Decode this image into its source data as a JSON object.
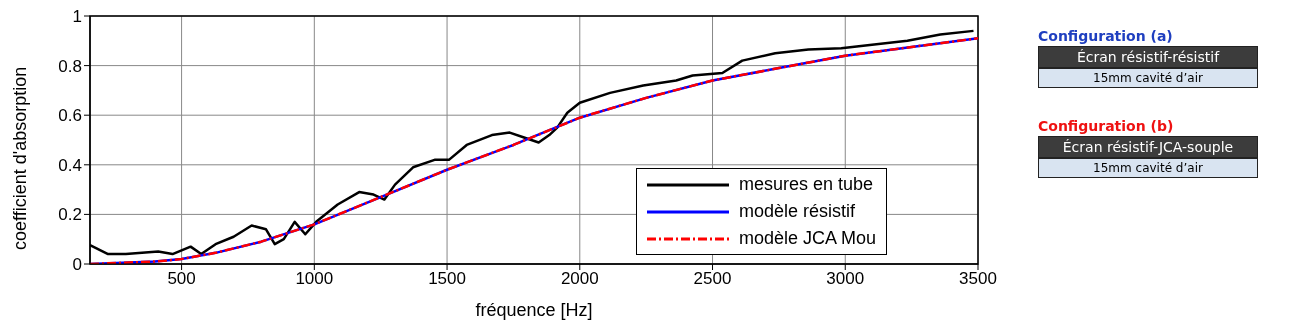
{
  "chart_data": {
    "type": "line",
    "xlabel": "fréquence [Hz]",
    "ylabel": "coefficient d'absorption",
    "xlim": [
      155,
      3500
    ],
    "ylim": [
      0,
      1
    ],
    "xticks": [
      500,
      1000,
      1500,
      2000,
      2500,
      3000,
      3500
    ],
    "yticks": [
      0,
      0.2,
      0.4,
      0.6,
      0.8,
      1
    ],
    "grid": true,
    "legend": "bottom right",
    "marker": "none",
    "series": [
      {
        "name": "mesures en tube",
        "color": "#000000",
        "line_style": "solid",
        "x": [
          155,
          223,
          290,
          412,
          466,
          534,
          574,
          628,
          696,
          764,
          818,
          851,
          885,
          926,
          966,
          1007,
          1088,
          1169,
          1223,
          1264,
          1304,
          1372,
          1453,
          1507,
          1574,
          1669,
          1736,
          1790,
          1845,
          1885,
          1915,
          1953,
          2000,
          2114,
          2239,
          2363,
          2425,
          2537,
          2612,
          2736,
          2861,
          2985,
          3109,
          3234,
          3358,
          3483
        ],
        "values": [
          0.076,
          0.04,
          0.04,
          0.05,
          0.04,
          0.07,
          0.04,
          0.08,
          0.11,
          0.155,
          0.14,
          0.08,
          0.1,
          0.17,
          0.12,
          0.17,
          0.24,
          0.29,
          0.28,
          0.26,
          0.32,
          0.39,
          0.42,
          0.42,
          0.48,
          0.52,
          0.53,
          0.51,
          0.49,
          0.52,
          0.55,
          0.61,
          0.65,
          0.69,
          0.72,
          0.74,
          0.76,
          0.77,
          0.82,
          0.85,
          0.865,
          0.87,
          0.885,
          0.9,
          0.925,
          0.94
        ]
      },
      {
        "name": "modèle résistif",
        "color": "#0000ff",
        "line_style": "solid",
        "x": [
          155,
          400,
          500,
          628,
          800,
          1000,
          1250,
          1500,
          1750,
          2000,
          2250,
          2500,
          2750,
          3000,
          3250,
          3500
        ],
        "values": [
          0,
          0.01,
          0.02,
          0.045,
          0.09,
          0.16,
          0.27,
          0.38,
          0.48,
          0.59,
          0.67,
          0.74,
          0.79,
          0.84,
          0.875,
          0.91
        ]
      },
      {
        "name": "modèle JCA Mou",
        "color": "#ff0000",
        "line_style": "dashed",
        "x": [
          155,
          400,
          500,
          628,
          800,
          1000,
          1250,
          1500,
          1750,
          2000,
          2250,
          2500,
          2750,
          3000,
          3250,
          3500
        ],
        "values": [
          0,
          0.01,
          0.02,
          0.045,
          0.09,
          0.16,
          0.27,
          0.38,
          0.48,
          0.59,
          0.67,
          0.74,
          0.79,
          0.84,
          0.875,
          0.91
        ]
      }
    ],
    "annotations": [
      "Configuration (a)",
      "Écran résistif-résistif",
      "15mm cavité d’air",
      "Configuration (b)",
      "Écran résistif-JCA-souple",
      "15mm cavité d’air"
    ]
  }
}
